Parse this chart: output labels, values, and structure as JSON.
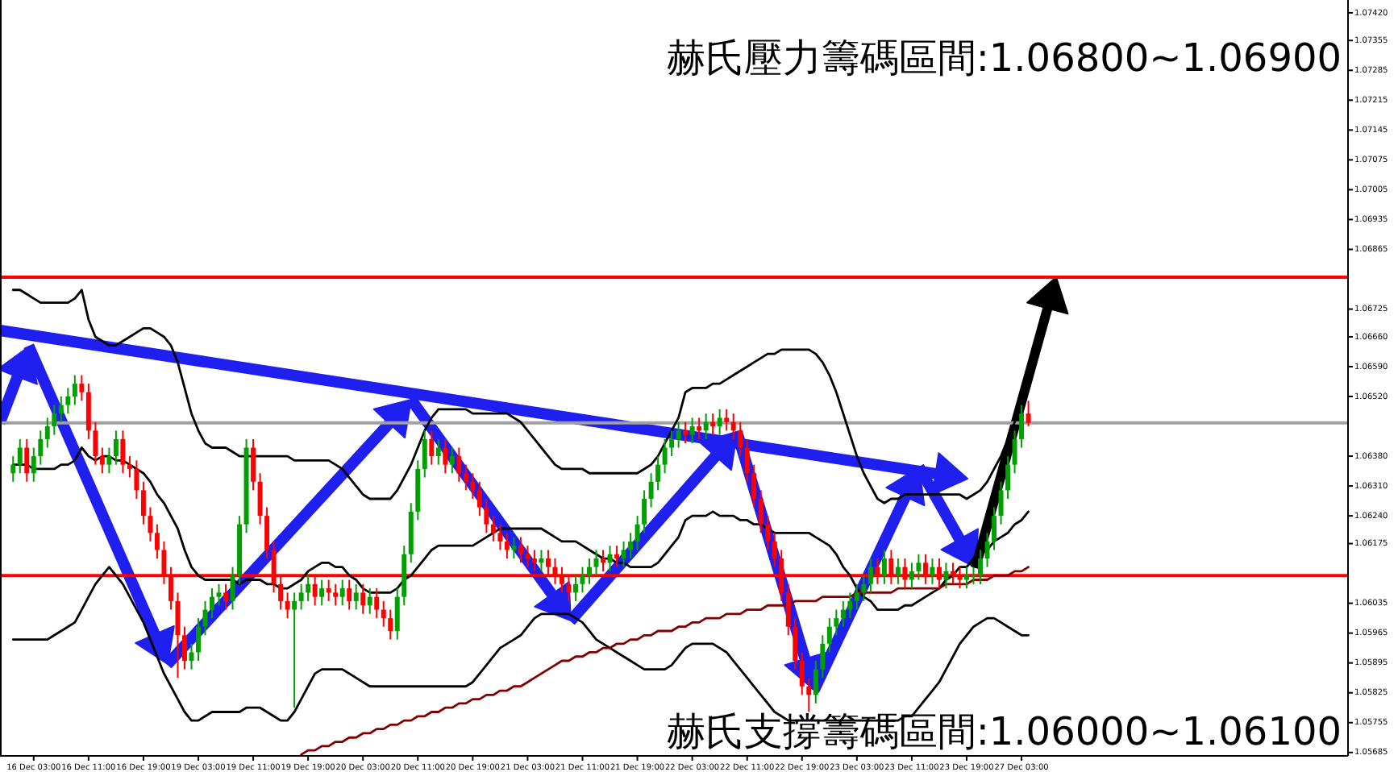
{
  "chart_data": {
    "type": "candlestick",
    "annotations": [
      "赫氏壓力籌碼區間:1.06800~1.06900",
      "赫氏支撐籌碼區間:1.06000~1.06100"
    ],
    "categories": [
      null,
      null,
      null,
      "16 Dec 03:00",
      null,
      null,
      null,
      null,
      null,
      null,
      null,
      "16 Dec 11:00",
      null,
      null,
      null,
      null,
      null,
      null,
      null,
      "16 Dec 19:00",
      null,
      null,
      null,
      null,
      null,
      null,
      null,
      "19 Dec 03:00",
      null,
      null,
      null,
      null,
      null,
      null,
      null,
      "19 Dec 11:00",
      null,
      null,
      null,
      null,
      null,
      null,
      null,
      "19 Dec 19:00",
      null,
      null,
      null,
      null,
      null,
      null,
      null,
      "20 Dec 03:00",
      null,
      null,
      null,
      null,
      null,
      null,
      null,
      "20 Dec 11:00",
      null,
      null,
      null,
      null,
      null,
      null,
      null,
      "20 Dec 19:00",
      null,
      null,
      null,
      null,
      null,
      null,
      null,
      "21 Dec 03:00",
      null,
      null,
      null,
      null,
      null,
      null,
      null,
      "21 Dec 11:00",
      null,
      null,
      null,
      null,
      null,
      null,
      null,
      "21 Dec 19:00",
      null,
      null,
      null,
      null,
      null,
      null,
      null,
      "22 Dec 03:00",
      null,
      null,
      null,
      null,
      null,
      null,
      null,
      "22 Dec 11:00",
      null,
      null,
      null,
      null,
      null,
      null,
      null,
      "22 Dec 19:00",
      null,
      null,
      null,
      null,
      null,
      null,
      null,
      "23 Dec 03:00",
      null,
      null,
      null,
      null,
      null,
      null,
      null,
      "23 Dec 11:00",
      null,
      null,
      null,
      null,
      null,
      null,
      null,
      "23 Dec 19:00",
      null,
      null,
      null,
      null,
      null,
      null,
      null,
      "27 Dec 03:00",
      null
    ],
    "ohlc": [
      [
        1.0634,
        1.0638,
        1.0632,
        1.0636
      ],
      [
        1.0636,
        1.0642,
        1.0634,
        1.064
      ],
      [
        1.064,
        1.0642,
        1.0632,
        1.0634
      ],
      [
        1.0634,
        1.064,
        1.0632,
        1.0638
      ],
      [
        1.0638,
        1.0644,
        1.0636,
        1.0642
      ],
      [
        1.0642,
        1.0647,
        1.064,
        1.0645
      ],
      [
        1.0645,
        1.065,
        1.0643,
        1.0648
      ],
      [
        1.0648,
        1.0652,
        1.0646,
        1.065
      ],
      [
        1.065,
        1.0654,
        1.0648,
        1.0652
      ],
      [
        1.0652,
        1.0657,
        1.065,
        1.0655
      ],
      [
        1.0655,
        1.0657,
        1.0651,
        1.0653
      ],
      [
        1.0653,
        1.0655,
        1.0642,
        1.0644
      ],
      [
        1.0644,
        1.0646,
        1.0636,
        1.0638
      ],
      [
        1.0638,
        1.064,
        1.0634,
        1.0636
      ],
      [
        1.0636,
        1.064,
        1.0634,
        1.0638
      ],
      [
        1.0638,
        1.0644,
        1.0636,
        1.0642
      ],
      [
        1.0642,
        1.0644,
        1.0634,
        1.0636
      ],
      [
        1.0636,
        1.0638,
        1.0633,
        1.0635
      ],
      [
        1.0635,
        1.0637,
        1.0628,
        1.063
      ],
      [
        1.063,
        1.0632,
        1.0622,
        1.0624
      ],
      [
        1.0624,
        1.0626,
        1.0618,
        1.062
      ],
      [
        1.062,
        1.0622,
        1.0614,
        1.0616
      ],
      [
        1.0616,
        1.0618,
        1.0608,
        1.061
      ],
      [
        1.061,
        1.0612,
        1.0602,
        1.0604
      ],
      [
        1.0604,
        1.0606,
        1.0586,
        1.0596
      ],
      [
        1.0596,
        1.0598,
        1.0588,
        1.059
      ],
      [
        1.059,
        1.0594,
        1.0588,
        1.0592
      ],
      [
        1.0592,
        1.06,
        1.059,
        1.0598
      ],
      [
        1.0598,
        1.0604,
        1.0596,
        1.0602
      ],
      [
        1.0602,
        1.0607,
        1.06,
        1.0605
      ],
      [
        1.0605,
        1.0608,
        1.0603,
        1.0606
      ],
      [
        1.0606,
        1.0608,
        1.0602,
        1.0604
      ],
      [
        1.0604,
        1.0612,
        1.0602,
        1.061
      ],
      [
        1.061,
        1.0624,
        1.0608,
        1.0622
      ],
      [
        1.0622,
        1.0642,
        1.062,
        1.064
      ],
      [
        1.064,
        1.0642,
        1.063,
        1.0632
      ],
      [
        1.0632,
        1.0634,
        1.0622,
        1.0624
      ],
      [
        1.0624,
        1.0626,
        1.0614,
        1.0616
      ],
      [
        1.0616,
        1.0618,
        1.0606,
        1.0608
      ],
      [
        1.0608,
        1.061,
        1.0602,
        1.0604
      ],
      [
        1.0604,
        1.0606,
        1.06,
        1.0602
      ],
      [
        1.0602,
        1.0606,
        1.0579,
        1.0604
      ],
      [
        1.0604,
        1.0608,
        1.0602,
        1.0606
      ],
      [
        1.0606,
        1.061,
        1.0604,
        1.0608
      ],
      [
        1.0608,
        1.061,
        1.0603,
        1.0605
      ],
      [
        1.0605,
        1.0609,
        1.0603,
        1.0607
      ],
      [
        1.0607,
        1.0609,
        1.0604,
        1.0606
      ],
      [
        1.0606,
        1.0608,
        1.0603,
        1.0605
      ],
      [
        1.0605,
        1.0609,
        1.0603,
        1.0607
      ],
      [
        1.0607,
        1.0609,
        1.0602,
        1.0604
      ],
      [
        1.0604,
        1.0608,
        1.0602,
        1.0606
      ],
      [
        1.0606,
        1.0608,
        1.0601,
        1.0603
      ],
      [
        1.0603,
        1.0607,
        1.0601,
        1.0605
      ],
      [
        1.0605,
        1.0607,
        1.06,
        1.0602
      ],
      [
        1.0602,
        1.0604,
        1.0598,
        1.06
      ],
      [
        1.06,
        1.0602,
        1.0595,
        1.0597
      ],
      [
        1.0597,
        1.0607,
        1.0595,
        1.0605
      ],
      [
        1.0605,
        1.0617,
        1.0603,
        1.0615
      ],
      [
        1.0615,
        1.0627,
        1.0613,
        1.0625
      ],
      [
        1.0625,
        1.0637,
        1.0623,
        1.0635
      ],
      [
        1.0635,
        1.0644,
        1.0633,
        1.0642
      ],
      [
        1.0642,
        1.0644,
        1.0636,
        1.0638
      ],
      [
        1.0638,
        1.0642,
        1.0636,
        1.064
      ],
      [
        1.064,
        1.0642,
        1.0634,
        1.0636
      ],
      [
        1.0636,
        1.064,
        1.0634,
        1.0638
      ],
      [
        1.0638,
        1.064,
        1.0632,
        1.0634
      ],
      [
        1.0634,
        1.0636,
        1.063,
        1.0632
      ],
      [
        1.0632,
        1.0634,
        1.0628,
        1.063
      ],
      [
        1.063,
        1.0632,
        1.0624,
        1.0626
      ],
      [
        1.0626,
        1.0628,
        1.062,
        1.0622
      ],
      [
        1.0622,
        1.0624,
        1.0618,
        1.062
      ],
      [
        1.062,
        1.0622,
        1.0616,
        1.0618
      ],
      [
        1.0618,
        1.062,
        1.0614,
        1.0616
      ],
      [
        1.0616,
        1.0619,
        1.0614,
        1.0617
      ],
      [
        1.0617,
        1.0619,
        1.0613,
        1.0615
      ],
      [
        1.0615,
        1.0617,
        1.0612,
        1.0614
      ],
      [
        1.0614,
        1.0616,
        1.0611,
        1.0613
      ],
      [
        1.0613,
        1.0616,
        1.0611,
        1.0614
      ],
      [
        1.0614,
        1.0616,
        1.061,
        1.0612
      ],
      [
        1.0612,
        1.0614,
        1.0608,
        1.061
      ],
      [
        1.061,
        1.0612,
        1.0606,
        1.0608
      ],
      [
        1.0608,
        1.061,
        1.0604,
        1.0606
      ],
      [
        1.0606,
        1.061,
        1.0604,
        1.0608
      ],
      [
        1.0608,
        1.0612,
        1.0606,
        1.061
      ],
      [
        1.061,
        1.0614,
        1.0608,
        1.0612
      ],
      [
        1.0612,
        1.0616,
        1.061,
        1.0614
      ],
      [
        1.0614,
        1.0616,
        1.0611,
        1.0613
      ],
      [
        1.0613,
        1.0617,
        1.0611,
        1.0615
      ],
      [
        1.0615,
        1.0617,
        1.0612,
        1.0614
      ],
      [
        1.0614,
        1.0618,
        1.0612,
        1.0616
      ],
      [
        1.0616,
        1.062,
        1.0614,
        1.0618
      ],
      [
        1.0618,
        1.0624,
        1.0616,
        1.0622
      ],
      [
        1.0622,
        1.063,
        1.062,
        1.0628
      ],
      [
        1.0628,
        1.0634,
        1.0626,
        1.0632
      ],
      [
        1.0632,
        1.0638,
        1.063,
        1.0636
      ],
      [
        1.0636,
        1.0642,
        1.0634,
        1.064
      ],
      [
        1.064,
        1.0644,
        1.0638,
        1.0642
      ],
      [
        1.0642,
        1.0646,
        1.064,
        1.0644
      ],
      [
        1.0644,
        1.0646,
        1.0641,
        1.0643
      ],
      [
        1.0643,
        1.0647,
        1.0641,
        1.0645
      ],
      [
        1.0645,
        1.0647,
        1.0642,
        1.0644
      ],
      [
        1.0644,
        1.0648,
        1.0642,
        1.0646
      ],
      [
        1.0646,
        1.0648,
        1.0643,
        1.0645
      ],
      [
        1.0645,
        1.0649,
        1.0643,
        1.0647
      ],
      [
        1.0647,
        1.0649,
        1.0644,
        1.0646
      ],
      [
        1.0646,
        1.0648,
        1.0642,
        1.0644
      ],
      [
        1.0644,
        1.0646,
        1.0638,
        1.064
      ],
      [
        1.064,
        1.0642,
        1.0632,
        1.0634
      ],
      [
        1.0634,
        1.0636,
        1.0626,
        1.0628
      ],
      [
        1.0628,
        1.063,
        1.062,
        1.0622
      ],
      [
        1.0622,
        1.0624,
        1.0616,
        1.0618
      ],
      [
        1.0618,
        1.062,
        1.0612,
        1.0614
      ],
      [
        1.0614,
        1.0616,
        1.0604,
        1.0606
      ],
      [
        1.0606,
        1.0608,
        1.0596,
        1.0598
      ],
      [
        1.0598,
        1.06,
        1.0588,
        1.059
      ],
      [
        1.059,
        1.0592,
        1.0582,
        1.0584
      ],
      [
        1.0584,
        1.0586,
        1.0578,
        1.0582
      ],
      [
        1.0582,
        1.059,
        1.058,
        1.0588
      ],
      [
        1.0588,
        1.0596,
        1.0586,
        1.0594
      ],
      [
        1.0594,
        1.06,
        1.0592,
        1.0598
      ],
      [
        1.0598,
        1.0602,
        1.0596,
        1.06
      ],
      [
        1.06,
        1.0604,
        1.0598,
        1.0602
      ],
      [
        1.0602,
        1.0606,
        1.06,
        1.0604
      ],
      [
        1.0604,
        1.0608,
        1.0602,
        1.0606
      ],
      [
        1.0606,
        1.061,
        1.0604,
        1.0608
      ],
      [
        1.0608,
        1.0614,
        1.0606,
        1.0612
      ],
      [
        1.0612,
        1.0614,
        1.0608,
        1.061
      ],
      [
        1.061,
        1.0616,
        1.0608,
        1.0614
      ],
      [
        1.0614,
        1.0616,
        1.0608,
        1.061
      ],
      [
        1.061,
        1.0614,
        1.0608,
        1.0612
      ],
      [
        1.0612,
        1.0614,
        1.0607,
        1.0609
      ],
      [
        1.0609,
        1.0613,
        1.0607,
        1.0611
      ],
      [
        1.0611,
        1.0615,
        1.0609,
        1.0613
      ],
      [
        1.0613,
        1.0615,
        1.0608,
        1.061
      ],
      [
        1.061,
        1.0614,
        1.0608,
        1.0612
      ],
      [
        1.0612,
        1.0614,
        1.0607,
        1.0609
      ],
      [
        1.0609,
        1.0613,
        1.0607,
        1.0611
      ],
      [
        1.0611,
        1.0613,
        1.0608,
        1.061
      ],
      [
        1.061,
        1.0612,
        1.0607,
        1.0609
      ],
      [
        1.0609,
        1.0612,
        1.0607,
        1.061
      ],
      [
        1.061,
        1.0612,
        1.0608,
        1.061
      ],
      [
        1.061,
        1.0616,
        1.0608,
        1.0614
      ],
      [
        1.0614,
        1.062,
        1.0612,
        1.0618
      ],
      [
        1.0618,
        1.0626,
        1.0616,
        1.0624
      ],
      [
        1.0624,
        1.0632,
        1.0622,
        1.063
      ],
      [
        1.063,
        1.0638,
        1.0628,
        1.0636
      ],
      [
        1.0636,
        1.0644,
        1.0634,
        1.0642
      ],
      [
        1.0642,
        1.065,
        1.064,
        1.0648
      ],
      [
        1.0648,
        1.0651,
        1.0645,
        1.06458
      ]
    ],
    "series": [
      {
        "type": "line",
        "color": "#000000",
        "values": [
          1.0677,
          1.0677,
          1.0676,
          1.0675,
          1.0674,
          1.0674,
          1.0674,
          1.0674,
          1.0674,
          1.0675,
          1.0677,
          1.067,
          1.0666,
          1.0665,
          1.0664,
          1.0664,
          1.0665,
          1.0666,
          1.0667,
          1.0668,
          1.0668,
          1.0667,
          1.0666,
          1.0664,
          1.066,
          1.0654,
          1.0648,
          1.0644,
          1.0641,
          1.064,
          1.064,
          1.064,
          1.0639,
          1.0638,
          1.0638,
          1.0638,
          1.0638,
          1.0638,
          1.0638,
          1.0638,
          1.0638,
          1.0637,
          1.0637,
          1.0637,
          1.0637,
          1.0637,
          1.0637,
          1.0636,
          1.0635,
          1.0633,
          1.0631,
          1.0629,
          1.0628,
          1.0628,
          1.0628,
          1.0628,
          1.063,
          1.0633,
          1.0636,
          1.064,
          1.0644,
          1.0647,
          1.0649,
          1.0649,
          1.0649,
          1.0649,
          1.0649,
          1.0648,
          1.0648,
          1.0648,
          1.0648,
          1.0648,
          1.0648,
          1.0647,
          1.0646,
          1.0644,
          1.0642,
          1.064,
          1.0638,
          1.0636,
          1.0635,
          1.0635,
          1.0635,
          1.0635,
          1.0634,
          1.0634,
          1.0634,
          1.0634,
          1.0634,
          1.0634,
          1.0634,
          1.0634,
          1.0635,
          1.0636,
          1.0638,
          1.0641,
          1.0644,
          1.0647,
          1.0653,
          1.0654,
          1.0654,
          1.0654,
          1.0655,
          1.0655,
          1.0656,
          1.0657,
          1.0658,
          1.0659,
          1.066,
          1.0661,
          1.0662,
          1.0662,
          1.0663,
          1.0663,
          1.0663,
          1.0663,
          1.0663,
          1.0662,
          1.066,
          1.0657,
          1.0653,
          1.0648,
          1.0643,
          1.0638,
          1.0634,
          1.0631,
          1.0628,
          1.0627,
          1.0628,
          1.0628,
          1.0629,
          1.0629,
          1.0629,
          1.0629,
          1.0629,
          1.0629,
          1.0629,
          1.0629,
          1.0629,
          1.0628,
          1.0629,
          1.063,
          1.0632,
          1.0635,
          1.0638,
          1.0642,
          1.0646,
          1.065,
          1.0654
        ]
      },
      {
        "type": "line",
        "color": "#000000",
        "values": [
          1.0636,
          1.0636,
          1.0636,
          1.0635,
          1.0635,
          1.0635,
          1.0635,
          1.0636,
          1.0636,
          1.0637,
          1.064,
          1.0638,
          1.0637,
          1.0638,
          1.0638,
          1.0637,
          1.0637,
          1.0636,
          1.0635,
          1.0634,
          1.0632,
          1.0629,
          1.0627,
          1.0624,
          1.0621,
          1.0616,
          1.0612,
          1.061,
          1.0609,
          1.0609,
          1.0609,
          1.0609,
          1.0609,
          1.0608,
          1.0609,
          1.0609,
          1.0609,
          1.0608,
          1.0608,
          1.0607,
          1.0607,
          1.0608,
          1.0609,
          1.0611,
          1.0612,
          1.0613,
          1.0613,
          1.0612,
          1.0612,
          1.061,
          1.0609,
          1.0607,
          1.0606,
          1.0606,
          1.0606,
          1.0606,
          1.0607,
          1.0609,
          1.061,
          1.0612,
          1.0614,
          1.0616,
          1.0617,
          1.0617,
          1.0617,
          1.0617,
          1.0617,
          1.0617,
          1.0618,
          1.0619,
          1.062,
          1.0621,
          1.0621,
          1.0621,
          1.0621,
          1.0621,
          1.0621,
          1.0621,
          1.062,
          1.0619,
          1.0618,
          1.0618,
          1.0618,
          1.0617,
          1.0616,
          1.0615,
          1.0614,
          1.0614,
          1.0613,
          1.0613,
          1.0612,
          1.0612,
          1.0612,
          1.0612,
          1.0613,
          1.0615,
          1.0617,
          1.0619,
          1.0623,
          1.0624,
          1.0624,
          1.0624,
          1.0625,
          1.0624,
          1.0624,
          1.0624,
          1.0623,
          1.0623,
          1.0622,
          1.0622,
          1.0621,
          1.062,
          1.062,
          1.062,
          1.062,
          1.062,
          1.062,
          1.0619,
          1.0618,
          1.0617,
          1.0615,
          1.0612,
          1.061,
          1.0607,
          1.0605,
          1.0604,
          1.0602,
          1.0602,
          1.0602,
          1.0602,
          1.0603,
          1.0603,
          1.0604,
          1.0605,
          1.0606,
          1.0607,
          1.0609,
          1.061,
          1.0612,
          1.0612,
          1.0614,
          1.0615,
          1.0616,
          1.0618,
          1.0619,
          1.062,
          1.0622,
          1.0623,
          1.0625
        ]
      },
      {
        "type": "line",
        "color": "#000000",
        "values": [
          1.0595,
          1.0595,
          1.0595,
          1.0595,
          1.0595,
          1.0595,
          1.0596,
          1.0597,
          1.0598,
          1.0599,
          1.0602,
          1.0605,
          1.0608,
          1.061,
          1.0612,
          1.061,
          1.0608,
          1.0605,
          1.0602,
          1.0599,
          1.0595,
          1.0591,
          1.0587,
          1.0584,
          1.0581,
          1.0578,
          1.0576,
          1.0576,
          1.0577,
          1.0578,
          1.0578,
          1.0578,
          1.0578,
          1.0578,
          1.0579,
          1.0579,
          1.0579,
          1.0578,
          1.0577,
          1.0576,
          1.0576,
          1.0578,
          1.0581,
          1.0584,
          1.0587,
          1.0588,
          1.0588,
          1.0588,
          1.0588,
          1.0587,
          1.0586,
          1.0585,
          1.0584,
          1.0584,
          1.0584,
          1.0584,
          1.0584,
          1.0584,
          1.0584,
          1.0584,
          1.0584,
          1.0584,
          1.0584,
          1.0584,
          1.0584,
          1.0584,
          1.0584,
          1.0585,
          1.0587,
          1.0589,
          1.0591,
          1.0593,
          1.0594,
          1.0595,
          1.0596,
          1.0598,
          1.06,
          1.0601,
          1.0601,
          1.0601,
          1.0601,
          1.0601,
          1.06,
          1.0599,
          1.0597,
          1.0595,
          1.0594,
          1.0593,
          1.0592,
          1.0591,
          1.059,
          1.0589,
          1.0588,
          1.0588,
          1.0588,
          1.0588,
          1.0589,
          1.0591,
          1.0593,
          1.0594,
          1.0594,
          1.0594,
          1.0594,
          1.0593,
          1.0592,
          1.059,
          1.0588,
          1.0586,
          1.0584,
          1.0582,
          1.058,
          1.0578,
          1.0577,
          1.0576,
          1.0576,
          1.0576,
          1.0576,
          1.0576,
          1.0576,
          1.0576,
          1.0576,
          1.0576,
          1.0576,
          1.0576,
          1.0576,
          1.0576,
          1.0576,
          1.0576,
          1.0576,
          1.0576,
          1.0577,
          1.0577,
          1.0579,
          1.0581,
          1.0583,
          1.0585,
          1.0588,
          1.0591,
          1.0594,
          1.0596,
          1.0598,
          1.0599,
          1.06,
          1.06,
          1.0599,
          1.0598,
          1.0597,
          1.0596,
          1.0596
        ]
      },
      {
        "type": "line",
        "color": "#800000",
        "values": [
          null,
          null,
          null,
          null,
          null,
          null,
          null,
          null,
          null,
          null,
          null,
          null,
          null,
          null,
          null,
          null,
          null,
          null,
          null,
          null,
          null,
          null,
          null,
          null,
          null,
          null,
          null,
          null,
          null,
          null,
          null,
          null,
          null,
          null,
          null,
          null,
          null,
          null,
          null,
          null,
          null,
          null,
          1.0568,
          1.0569,
          1.0569,
          1.057,
          1.057,
          1.0571,
          1.0571,
          1.0572,
          1.0572,
          1.0573,
          1.0573,
          1.0574,
          1.0574,
          1.0575,
          1.0575,
          1.0576,
          1.0576,
          1.0577,
          1.0577,
          1.0578,
          1.0578,
          1.0579,
          1.0579,
          1.058,
          1.058,
          1.0581,
          1.0581,
          1.0582,
          1.0582,
          1.0583,
          1.0583,
          1.0584,
          1.0584,
          1.0585,
          1.0586,
          1.0587,
          1.0588,
          1.0589,
          1.059,
          1.059,
          1.0591,
          1.0591,
          1.0592,
          1.0592,
          1.0593,
          1.0593,
          1.0594,
          1.0594,
          1.0595,
          1.0595,
          1.0596,
          1.0596,
          1.0597,
          1.0597,
          1.0597,
          1.0598,
          1.0598,
          1.0599,
          1.0599,
          1.06,
          1.06,
          1.06,
          1.0601,
          1.0601,
          1.0601,
          1.0602,
          1.0602,
          1.0602,
          1.0603,
          1.0603,
          1.0603,
          1.0603,
          1.0604,
          1.0604,
          1.0604,
          1.0604,
          1.0605,
          1.0605,
          1.0605,
          1.0605,
          1.0605,
          1.0606,
          1.0606,
          1.0606,
          1.0606,
          1.0606,
          1.0606,
          1.0607,
          1.0607,
          1.0607,
          1.0607,
          1.0607,
          1.0607,
          1.0607,
          1.0608,
          1.0608,
          1.0608,
          1.0608,
          1.0609,
          1.0609,
          1.0609,
          1.061,
          1.061,
          1.061,
          1.0611,
          1.0611,
          1.0612
        ]
      }
    ],
    "ylim": [
      1.05677,
      1.0745
    ],
    "yticks": [
      {
        "value": 1.0742,
        "label": "1.07420"
      },
      {
        "value": 1.07355,
        "label": "1.07355"
      },
      {
        "value": 1.07285,
        "label": "1.07285"
      },
      {
        "value": 1.07215,
        "label": "1.07215"
      },
      {
        "value": 1.07145,
        "label": "1.07145"
      },
      {
        "value": 1.07075,
        "label": "1.07075"
      },
      {
        "value": 1.07005,
        "label": "1.07005"
      },
      {
        "value": 1.06935,
        "label": "1.06935"
      },
      {
        "value": 1.06865,
        "label": "1.06865"
      },
      {
        "value": 1.06725,
        "label": "1.06725"
      },
      {
        "value": 1.0666,
        "label": "1.06660"
      },
      {
        "value": 1.0659,
        "label": "1.06590"
      },
      {
        "value": 1.0652,
        "label": "1.06520"
      },
      {
        "value": 1.0638,
        "label": "1.06380"
      },
      {
        "value": 1.0631,
        "label": "1.06310"
      },
      {
        "value": 1.0624,
        "label": "1.06240"
      },
      {
        "value": 1.06175,
        "label": "1.06175"
      },
      {
        "value": 1.06035,
        "label": "1.06035"
      },
      {
        "value": 1.05965,
        "label": "1.05965"
      },
      {
        "value": 1.05895,
        "label": "1.05895"
      },
      {
        "value": 1.05825,
        "label": "1.05825"
      },
      {
        "value": 1.05755,
        "label": "1.05755"
      },
      {
        "value": 1.05685,
        "label": "1.05685"
      }
    ],
    "ref_lines": [
      {
        "axis": "y",
        "value": 1.068,
        "color": "#ff0000"
      },
      {
        "axis": "y",
        "value": 1.06458,
        "color": "#a0a0a0"
      },
      {
        "axis": "y",
        "value": 1.061,
        "color": "#ff0000"
      }
    ]
  }
}
